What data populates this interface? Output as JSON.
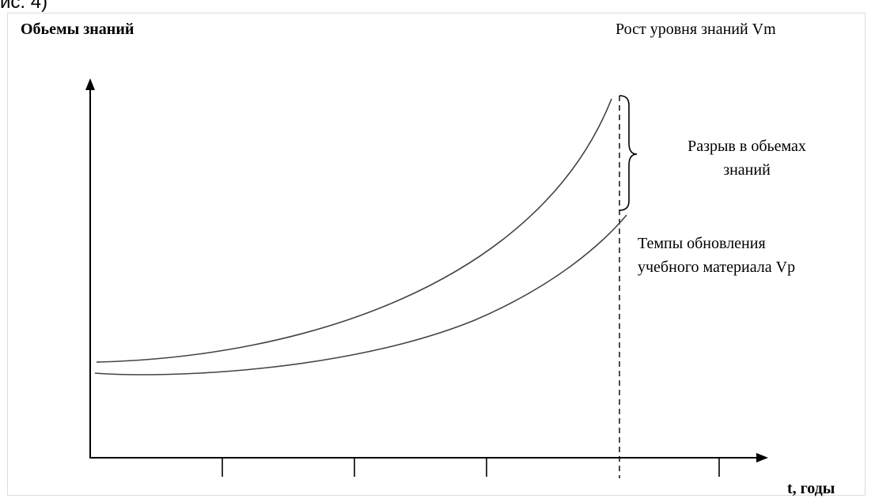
{
  "caption": "ис. 4)",
  "y_axis_label": "Обьемы знаний",
  "x_axis_label": "t, годы",
  "curves": {
    "vm_label": "Рост уровня знаний Vm",
    "vp_label_line1": "Темпы обновления",
    "vp_label_line2": "учебного материала Vp"
  },
  "gap": {
    "label_line1": "Разрыв в обьемах",
    "label_line2": "знаний"
  },
  "colors": {
    "line": "#000000",
    "curve": "#444444",
    "frame": "#dcdcdc"
  }
}
